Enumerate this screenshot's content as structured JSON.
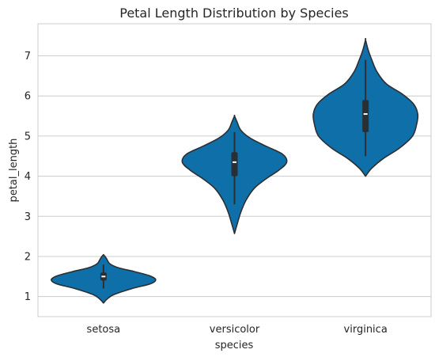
{
  "chart_data": {
    "type": "violin",
    "title": "Petal Length Distribution by Species",
    "xlabel": "species",
    "ylabel": "petal_length",
    "categories": [
      "setosa",
      "versicolor",
      "virginica"
    ],
    "ylim": [
      0.5,
      7.8
    ],
    "yticks": [
      "1",
      "2",
      "3",
      "4",
      "5",
      "6",
      "7"
    ],
    "grid": true,
    "colors": {
      "violin_fill": "#0f6fa8",
      "violin_edge": "#2b2f33",
      "box": "#2b2f33",
      "median": "#ffffff",
      "grid": "#cccccc"
    },
    "violins": [
      {
        "name": "setosa",
        "min": 0.84,
        "max": 2.04,
        "q1": 1.4,
        "median": 1.5,
        "q3": 1.6,
        "whisker_low": 1.2,
        "whisker_high": 1.8,
        "profile": [
          [
            0.84,
            0.0
          ],
          [
            0.95,
            0.08
          ],
          [
            1.05,
            0.2
          ],
          [
            1.2,
            0.55
          ],
          [
            1.32,
            0.9
          ],
          [
            1.42,
            1.0
          ],
          [
            1.52,
            0.88
          ],
          [
            1.62,
            0.6
          ],
          [
            1.72,
            0.28
          ],
          [
            1.82,
            0.12
          ],
          [
            1.92,
            0.07
          ],
          [
            2.0,
            0.03
          ],
          [
            2.04,
            0.0
          ]
        ]
      },
      {
        "name": "versicolor",
        "min": 2.57,
        "max": 5.5,
        "q1": 4.0,
        "median": 4.35,
        "q3": 4.6,
        "whisker_low": 3.3,
        "whisker_high": 5.1,
        "profile": [
          [
            2.57,
            0.0
          ],
          [
            2.8,
            0.05
          ],
          [
            3.1,
            0.12
          ],
          [
            3.4,
            0.22
          ],
          [
            3.7,
            0.38
          ],
          [
            3.95,
            0.62
          ],
          [
            4.15,
            0.85
          ],
          [
            4.35,
            1.0
          ],
          [
            4.55,
            0.92
          ],
          [
            4.75,
            0.6
          ],
          [
            4.95,
            0.3
          ],
          [
            5.15,
            0.12
          ],
          [
            5.35,
            0.05
          ],
          [
            5.5,
            0.0
          ]
        ]
      },
      {
        "name": "virginica",
        "min": 4.0,
        "max": 7.4,
        "q1": 5.1,
        "median": 5.55,
        "q3": 5.9,
        "whisker_low": 4.5,
        "whisker_high": 6.9,
        "profile": [
          [
            4.0,
            0.0
          ],
          [
            4.2,
            0.12
          ],
          [
            4.45,
            0.35
          ],
          [
            4.7,
            0.65
          ],
          [
            5.0,
            0.9
          ],
          [
            5.3,
            0.98
          ],
          [
            5.55,
            1.0
          ],
          [
            5.8,
            0.92
          ],
          [
            6.05,
            0.7
          ],
          [
            6.3,
            0.4
          ],
          [
            6.6,
            0.22
          ],
          [
            6.9,
            0.12
          ],
          [
            7.15,
            0.05
          ],
          [
            7.4,
            0.0
          ]
        ]
      }
    ]
  }
}
